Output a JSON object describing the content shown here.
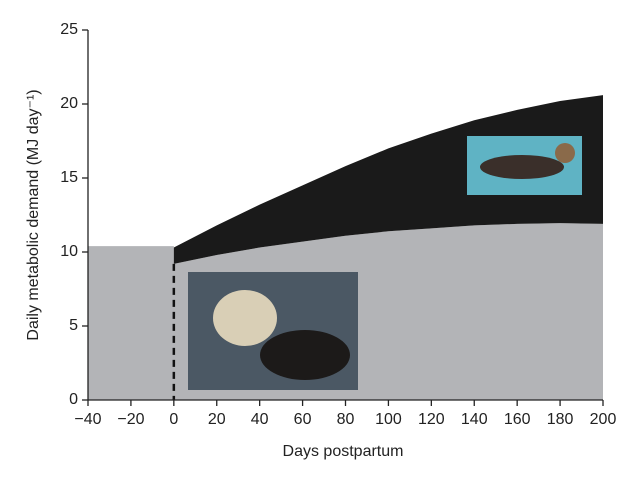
{
  "chart_data": {
    "type": "stacked_area",
    "x_label": "Days postpartum",
    "y_label": "Daily metabolic demand (MJ day⁻¹)",
    "x": [
      -40,
      0,
      0,
      20,
      40,
      60,
      80,
      100,
      120,
      140,
      160,
      180,
      200
    ],
    "series": [
      {
        "color": "#b3b4b7",
        "values": [
          10.4,
          10.4,
          9.2,
          9.8,
          10.3,
          10.7,
          11.1,
          11.4,
          11.6,
          11.8,
          11.9,
          11.95,
          11.9
        ]
      },
      {
        "color": "#1a1a1a",
        "values": [
          null,
          null,
          1.1,
          2.0,
          2.9,
          3.8,
          4.7,
          5.6,
          6.4,
          7.1,
          7.7,
          8.25,
          8.7
        ]
      }
    ],
    "xlim": [
      -40,
      200
    ],
    "ylim": [
      0,
      25
    ],
    "xticks": [
      {
        "value": -40,
        "label": "−40"
      },
      {
        "value": -20,
        "label": "−20"
      },
      0,
      20,
      40,
      60,
      80,
      100,
      120,
      140,
      160,
      180,
      200
    ],
    "yticks": [
      0,
      5,
      10,
      15,
      20,
      25
    ]
  }
}
